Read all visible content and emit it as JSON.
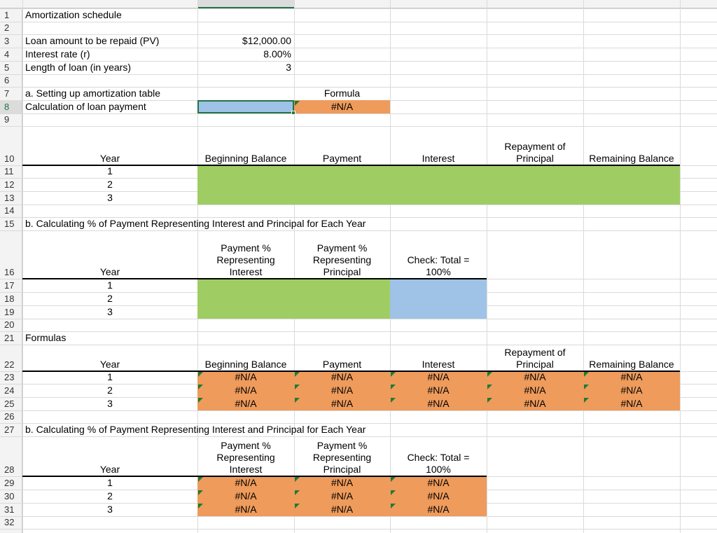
{
  "row_numbers": [
    1,
    2,
    3,
    4,
    5,
    6,
    7,
    8,
    9,
    10,
    11,
    12,
    13,
    14,
    15,
    16,
    17,
    18,
    19,
    20,
    21,
    22,
    23,
    24,
    25,
    26,
    27,
    28,
    29,
    30,
    31,
    32
  ],
  "cells": [
    [
      "Amortization schedule"
    ],
    [],
    [
      "Loan amount to be repaid (PV)",
      "$12,000.00"
    ],
    [
      "Interest rate  (r)",
      "8.00%"
    ],
    [
      "Length of loan (in years)",
      3
    ],
    [],
    [
      "a. Setting up amortization table",
      null,
      "Formula"
    ],
    [
      "Calculation of loan payment",
      null,
      "#N/A"
    ],
    [],
    [
      "Year",
      "Beginning Balance",
      "Payment",
      "Interest",
      "Repayment of\nPrincipal",
      "Remaining Balance"
    ],
    [
      1
    ],
    [
      2
    ],
    [
      3
    ],
    [],
    [
      "b. Calculating % of Payment Representing Interest and Principal for Each Year"
    ],
    [
      "Year",
      "Payment %\nRepresenting\nInterest",
      "Payment %\nRepresenting\nPrincipal",
      "Check:  Total =\n100%"
    ],
    [
      1
    ],
    [
      2
    ],
    [
      3
    ],
    [],
    [
      "Formulas"
    ],
    [
      "Year",
      "Beginning Balance",
      "Payment",
      "Interest",
      "Repayment of\nPrincipal",
      "Remaining Balance"
    ],
    [
      1,
      "#N/A",
      "#N/A",
      "#N/A",
      "#N/A",
      "#N/A"
    ],
    [
      2,
      "#N/A",
      "#N/A",
      "#N/A",
      "#N/A",
      "#N/A"
    ],
    [
      3,
      "#N/A",
      "#N/A",
      "#N/A",
      "#N/A",
      "#N/A"
    ],
    [],
    [
      "b. Calculating % of Payment Representing Interest and Principal for Each Year"
    ],
    [
      "Year",
      "Payment %\nRepresenting\nInterest",
      "Payment %\nRepresenting\nPrincipal",
      "Check:  Total =\n100%"
    ],
    [
      1,
      "#N/A",
      "#N/A",
      "#N/A"
    ],
    [
      2,
      "#N/A",
      "#N/A",
      "#N/A"
    ],
    [
      3,
      "#N/A",
      "#N/A",
      "#N/A"
    ],
    []
  ]
}
